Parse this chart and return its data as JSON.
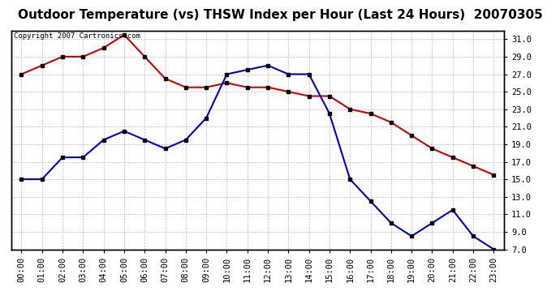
{
  "title": "Outdoor Temperature (vs) THSW Index per Hour (Last 24 Hours)  20070305",
  "copyright_text": "Copyright 2007 Cartronics.com",
  "hours": [
    "00:00",
    "01:00",
    "02:00",
    "03:00",
    "04:00",
    "05:00",
    "06:00",
    "07:00",
    "08:00",
    "09:00",
    "10:00",
    "11:00",
    "12:00",
    "13:00",
    "14:00",
    "15:00",
    "16:00",
    "17:00",
    "18:00",
    "19:00",
    "20:00",
    "21:00",
    "22:00",
    "23:00"
  ],
  "temp_red": [
    27.0,
    28.0,
    29.0,
    29.0,
    30.0,
    31.5,
    29.0,
    26.5,
    25.5,
    25.5,
    26.0,
    25.5,
    25.5,
    25.0,
    24.5,
    24.5,
    23.0,
    22.5,
    21.5,
    20.0,
    18.5,
    17.5,
    16.5,
    15.5
  ],
  "thsw_blue": [
    15.0,
    15.0,
    17.5,
    17.5,
    19.5,
    20.5,
    19.5,
    18.5,
    19.5,
    22.0,
    27.0,
    27.5,
    28.0,
    27.0,
    27.0,
    22.5,
    15.0,
    12.5,
    10.0,
    8.5,
    10.0,
    11.5,
    8.5,
    7.0
  ],
  "ylim": [
    7.0,
    32.0
  ],
  "yticks": [
    7.0,
    9.0,
    11.0,
    13.0,
    15.0,
    17.0,
    19.0,
    21.0,
    23.0,
    25.0,
    27.0,
    29.0,
    31.0
  ],
  "red_color": "#cc0000",
  "blue_color": "#0000cc",
  "bg_color": "#ffffff",
  "grid_color": "#bbbbbb",
  "title_fontsize": 11,
  "axis_fontsize": 7.5,
  "copyright_fontsize": 6.5,
  "marker": "s",
  "marker_size": 3.5,
  "linewidth": 1.5
}
